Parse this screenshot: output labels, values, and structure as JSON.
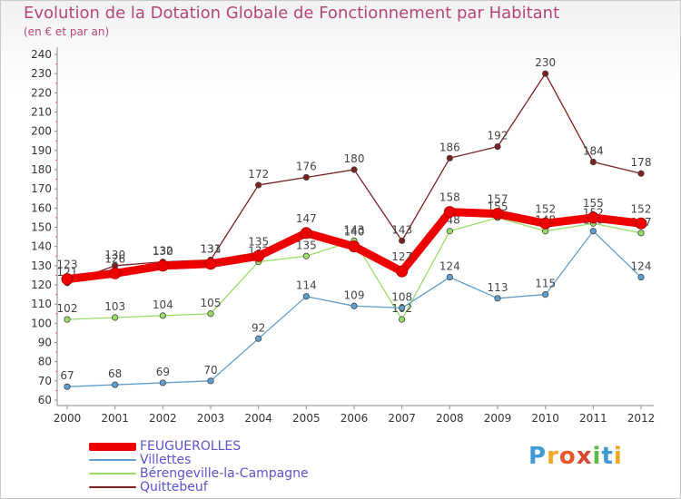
{
  "chart_data": {
    "type": "line",
    "title": "Evolution de la Dotation Globale de Fonctionnement par Habitant",
    "subtitle": "(en € et par an)",
    "x": [
      "2000",
      "2001",
      "2002",
      "2003",
      "2004",
      "2005",
      "2006",
      "2007",
      "2008",
      "2009",
      "2010",
      "2011",
      "2012"
    ],
    "ylim": [
      60,
      240
    ],
    "yticks": [
      60,
      70,
      80,
      90,
      100,
      110,
      120,
      130,
      140,
      150,
      160,
      170,
      180,
      190,
      200,
      210,
      220,
      230,
      240
    ],
    "grid": false,
    "legend_position": "bottom-left",
    "series": [
      {
        "name": "Quittebeuf",
        "color": "#7b2020",
        "values": [
          121,
          130,
          132,
          133,
          172,
          176,
          180,
          143,
          186,
          192,
          230,
          184,
          178
        ]
      },
      {
        "name": "Bérengeville-la-Campagne",
        "color": "#99dd66",
        "values": [
          102,
          103,
          104,
          105,
          132,
          135,
          143,
          102,
          148,
          155,
          148,
          152,
          147
        ]
      },
      {
        "name": "Villettes",
        "color": "#5f9fd0",
        "values": [
          67,
          68,
          69,
          70,
          92,
          114,
          109,
          108,
          124,
          113,
          115,
          148,
          124
        ]
      },
      {
        "name": "FEUGUEROLLES",
        "color": "#ee0000",
        "values": [
          123,
          126,
          130,
          131,
          135,
          147,
          140,
          127,
          158,
          157,
          152,
          155,
          152
        ]
      }
    ]
  },
  "legend": [
    {
      "name": "FEUGUEROLLES",
      "color": "#ee0000"
    },
    {
      "name": "Villettes",
      "color": "#5f9fd0"
    },
    {
      "name": "Bérengeville-la-Campagne",
      "color": "#99dd66"
    },
    {
      "name": "Quittebeuf",
      "color": "#7b2020"
    }
  ],
  "logo": {
    "text": "Proxiti"
  }
}
